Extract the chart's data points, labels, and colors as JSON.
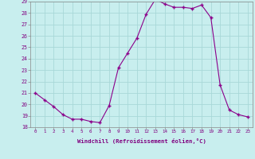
{
  "x": [
    0,
    1,
    2,
    3,
    4,
    5,
    6,
    7,
    8,
    9,
    10,
    11,
    12,
    13,
    14,
    15,
    16,
    17,
    18,
    19,
    20,
    21,
    22,
    23
  ],
  "y": [
    21.0,
    20.4,
    19.8,
    19.1,
    18.7,
    18.7,
    18.5,
    18.4,
    19.9,
    23.2,
    24.5,
    25.8,
    27.9,
    29.2,
    28.8,
    28.5,
    28.5,
    28.4,
    28.7,
    27.6,
    21.7,
    19.5,
    19.1,
    18.9
  ],
  "line_color": "#8b008b",
  "marker": "+",
  "marker_size": 3.5,
  "marker_lw": 1.0,
  "bg_color": "#c8eeee",
  "grid_color": "#a8d8d8",
  "xlabel": "Windchill (Refroidissement éolien,°C)",
  "label_color": "#800080",
  "tick_color": "#800080",
  "ylim": [
    18,
    29
  ],
  "yticks": [
    18,
    19,
    20,
    21,
    22,
    23,
    24,
    25,
    26,
    27,
    28,
    29
  ],
  "xticks": [
    0,
    1,
    2,
    3,
    4,
    5,
    6,
    7,
    8,
    9,
    10,
    11,
    12,
    13,
    14,
    15,
    16,
    17,
    18,
    19,
    20,
    21,
    22,
    23
  ],
  "xtick_labels": [
    "0",
    "1",
    "2",
    "3",
    "4",
    "5",
    "6",
    "7",
    "8",
    "9",
    "10",
    "11",
    "12",
    "13",
    "14",
    "15",
    "16",
    "17",
    "18",
    "19",
    "20",
    "21",
    "22",
    "23"
  ]
}
